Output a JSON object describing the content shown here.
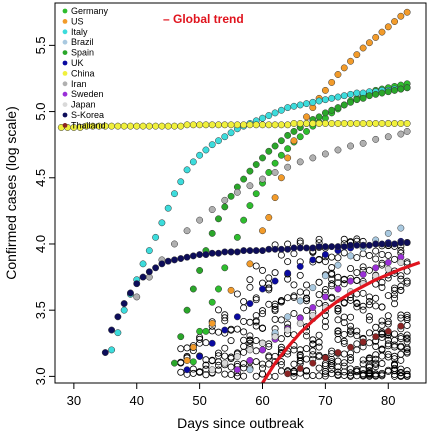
{
  "chart_data": {
    "type": "scatter",
    "title": "",
    "xlabel": "Days since outbreak",
    "ylabel": "Confirmed cases (log scale)",
    "xlim": [
      27,
      86
    ],
    "ylim": [
      2.95,
      5.82
    ],
    "x_ticks": [
      30,
      40,
      50,
      60,
      70,
      80
    ],
    "x_tick_labels": [
      "30",
      "40",
      "50",
      "60",
      "70",
      "80"
    ],
    "y_ticks": [
      3.0,
      3.5,
      4.0,
      4.5,
      5.0,
      5.5
    ],
    "y_tick_labels": [
      "3.0",
      "3.5",
      "4.0",
      "4.5",
      "5.0",
      "5.5"
    ],
    "grid": false,
    "legend_position": "top-left",
    "annotation": {
      "text": "Global trend",
      "color": "#e0141e"
    },
    "series": [
      {
        "name": "Germany",
        "color": "#2ebd2e",
        "x": [
          49,
          50,
          51,
          52,
          53,
          54,
          55,
          56,
          57,
          58,
          59,
          60,
          61,
          62,
          63,
          64,
          65,
          66,
          67,
          68,
          69,
          70,
          71,
          72,
          73,
          74,
          75,
          76,
          77,
          78,
          79,
          80,
          81,
          82,
          83
        ],
        "y": [
          3.11,
          3.34,
          3.34,
          3.56,
          3.66,
          3.82,
          3.94,
          4.05,
          4.18,
          4.29,
          4.38,
          4.46,
          4.54,
          4.61,
          4.67,
          4.72,
          4.77,
          4.81,
          4.85,
          4.89,
          4.92,
          4.95,
          4.99,
          5.02,
          5.05,
          5.08,
          5.1,
          5.12,
          5.14,
          5.16,
          5.17,
          5.18,
          5.19,
          5.2,
          5.21
        ]
      },
      {
        "name": "US",
        "color": "#f29b2a",
        "x": [
          48,
          49,
          52,
          55,
          58,
          60,
          61,
          62,
          63,
          64,
          65,
          66,
          67,
          68,
          69,
          70,
          71,
          72,
          73,
          74,
          75,
          76,
          77,
          78,
          79,
          80,
          81,
          82,
          83
        ],
        "y": [
          3.12,
          3.22,
          3.4,
          3.65,
          3.85,
          4.1,
          4.2,
          4.35,
          4.5,
          4.65,
          4.78,
          4.88,
          4.96,
          5.03,
          5.1,
          5.16,
          5.22,
          5.28,
          5.33,
          5.38,
          5.43,
          5.48,
          5.52,
          5.56,
          5.6,
          5.64,
          5.68,
          5.72,
          5.75
        ]
      },
      {
        "name": "Italy",
        "color": "#3cdcdc",
        "x": [
          36,
          37,
          38,
          39,
          40,
          41,
          42,
          43,
          44,
          45,
          46,
          47,
          48,
          49,
          50,
          51,
          52,
          53,
          54,
          55,
          56,
          57,
          58,
          59,
          60,
          61,
          62,
          63,
          64,
          65,
          66,
          67,
          68,
          69,
          70,
          71,
          72,
          73,
          74,
          75,
          76,
          77,
          78,
          79,
          80,
          81,
          82,
          83
        ],
        "y": [
          3.2,
          3.33,
          3.5,
          3.62,
          3.73,
          3.85,
          3.95,
          4.05,
          4.16,
          4.27,
          4.38,
          4.47,
          4.56,
          4.62,
          4.67,
          4.71,
          4.75,
          4.78,
          4.81,
          4.84,
          4.87,
          4.89,
          4.91,
          4.93,
          4.95,
          4.97,
          4.99,
          5.01,
          5.03,
          5.04,
          5.05,
          5.06,
          5.07,
          5.08,
          5.09,
          5.1,
          5.11,
          5.12,
          5.13,
          5.14,
          5.14,
          5.15,
          5.15,
          5.16,
          5.16,
          5.17,
          5.17,
          5.18
        ]
      },
      {
        "name": "Brazil",
        "color": "#a9c9e0",
        "x": [
          58,
          60,
          62,
          64,
          66,
          68,
          70,
          72,
          74,
          76,
          78,
          80,
          82
        ],
        "y": [
          3.05,
          3.2,
          3.33,
          3.45,
          3.57,
          3.67,
          3.76,
          3.84,
          3.91,
          3.97,
          4.03,
          4.08,
          4.12
        ]
      },
      {
        "name": "Spain",
        "color": "#2aa62a",
        "x": [
          46,
          47,
          48,
          49,
          50,
          51,
          52,
          53,
          54,
          55,
          56,
          57,
          58,
          59,
          60,
          61,
          62,
          63,
          64,
          65,
          66,
          67,
          68,
          69,
          70,
          71,
          72,
          73,
          74,
          75,
          76,
          77,
          78,
          79,
          80,
          81,
          82,
          83
        ],
        "y": [
          3.1,
          3.3,
          3.5,
          3.66,
          3.8,
          3.95,
          4.08,
          4.19,
          4.28,
          4.36,
          4.43,
          4.49,
          4.55,
          4.6,
          4.65,
          4.7,
          4.74,
          4.78,
          4.82,
          4.85,
          4.88,
          4.91,
          4.94,
          4.96,
          4.99,
          5.01,
          5.03,
          5.05,
          5.07,
          5.09,
          5.1,
          5.12,
          5.13,
          5.14,
          5.15,
          5.16,
          5.17,
          5.18
        ]
      },
      {
        "name": "UK",
        "color": "#0a0aa0",
        "x": [
          48,
          50,
          52,
          54,
          56,
          58,
          60,
          62,
          64,
          66,
          68,
          70,
          72,
          74,
          76,
          78,
          80,
          82
        ],
        "y": [
          3.05,
          3.15,
          3.25,
          3.35,
          3.45,
          3.55,
          3.66,
          3.72,
          3.78,
          3.83,
          3.88,
          3.92,
          3.95,
          3.97,
          3.99,
          4.0,
          4.01,
          4.02
        ]
      },
      {
        "name": "China",
        "color": "#f0f03c",
        "x": [
          28,
          29,
          30,
          31,
          32,
          33,
          34,
          35,
          36,
          37,
          38,
          39,
          40,
          41,
          42,
          43,
          44,
          45,
          46,
          47,
          48,
          49,
          50,
          51,
          52,
          53,
          54,
          55,
          56,
          57,
          58,
          59,
          60,
          61,
          62,
          63,
          64,
          65,
          66,
          67,
          68,
          69,
          70,
          71,
          72,
          73,
          74,
          75,
          76,
          77,
          78,
          79,
          80,
          81,
          82,
          83
        ],
        "y": [
          4.88,
          4.88,
          4.88,
          4.88,
          4.89,
          4.89,
          4.89,
          4.89,
          4.89,
          4.89,
          4.89,
          4.89,
          4.89,
          4.89,
          4.89,
          4.89,
          4.89,
          4.89,
          4.89,
          4.89,
          4.9,
          4.9,
          4.9,
          4.9,
          4.9,
          4.9,
          4.9,
          4.9,
          4.9,
          4.9,
          4.9,
          4.9,
          4.9,
          4.9,
          4.9,
          4.9,
          4.9,
          4.91,
          4.91,
          4.91,
          4.91,
          4.91,
          4.91,
          4.91,
          4.91,
          4.91,
          4.91,
          4.91,
          4.91,
          4.91,
          4.91,
          4.91,
          4.91,
          4.91,
          4.91,
          4.91
        ]
      },
      {
        "name": "Iran",
        "color": "#b0b0b0",
        "x": [
          40,
          42,
          44,
          46,
          48,
          50,
          52,
          54,
          56,
          58,
          60,
          62,
          64,
          66,
          68,
          70,
          72,
          74,
          76,
          78,
          80,
          82,
          83
        ],
        "y": [
          3.6,
          3.75,
          3.88,
          4.0,
          4.1,
          4.18,
          4.26,
          4.33,
          4.39,
          4.44,
          4.49,
          4.54,
          4.58,
          4.62,
          4.65,
          4.68,
          4.71,
          4.74,
          4.76,
          4.79,
          4.81,
          4.83,
          4.85
        ]
      },
      {
        "name": "Sweden",
        "color": "#9a2fd8",
        "x": [
          56,
          58,
          60,
          62,
          64,
          66,
          68,
          70,
          72,
          74,
          76,
          78,
          80,
          82
        ],
        "y": [
          3.05,
          3.12,
          3.2,
          3.28,
          3.36,
          3.44,
          3.52,
          3.6,
          3.66,
          3.72,
          3.77,
          3.82,
          3.86,
          3.9
        ]
      },
      {
        "name": "Japan",
        "color": "#d9d9d9",
        "x": [
          52,
          54,
          56,
          58,
          60,
          62,
          64,
          66,
          68,
          70,
          72,
          74,
          76,
          78,
          80,
          82
        ],
        "y": [
          3.05,
          3.1,
          3.15,
          3.2,
          3.25,
          3.3,
          3.35,
          3.4,
          3.46,
          3.52,
          3.58,
          3.64,
          3.7,
          3.76,
          3.81,
          3.86
        ]
      },
      {
        "name": "S-Korea",
        "color": "#0d0d5a",
        "x": [
          35,
          36,
          37,
          38,
          39,
          40,
          41,
          42,
          43,
          44,
          45,
          46,
          47,
          48,
          49,
          50,
          51,
          52,
          53,
          54,
          55,
          56,
          57,
          58,
          59,
          60,
          61,
          62,
          63,
          64,
          65,
          66,
          67,
          68,
          69,
          70,
          71,
          72,
          73,
          74,
          75,
          76,
          77,
          78,
          79,
          80,
          81,
          82,
          83
        ],
        "y": [
          3.18,
          3.35,
          3.45,
          3.55,
          3.63,
          3.7,
          3.75,
          3.79,
          3.82,
          3.85,
          3.87,
          3.88,
          3.89,
          3.9,
          3.91,
          3.92,
          3.92,
          3.93,
          3.93,
          3.94,
          3.94,
          3.94,
          3.95,
          3.95,
          3.95,
          3.95,
          3.96,
          3.96,
          3.96,
          3.96,
          3.97,
          3.97,
          3.97,
          3.97,
          3.98,
          3.98,
          3.98,
          3.98,
          3.98,
          3.99,
          3.99,
          3.99,
          3.99,
          4.0,
          4.0,
          4.0,
          4.0,
          4.01,
          4.01
        ]
      },
      {
        "name": "Thailand",
        "color": "#8b2323",
        "x": [
          64,
          66,
          68,
          70,
          72,
          74,
          76,
          78,
          80,
          82
        ],
        "y": [
          3.02,
          3.06,
          3.1,
          3.14,
          3.18,
          3.22,
          3.26,
          3.3,
          3.34,
          3.38
        ]
      }
    ],
    "other_countries": {
      "marker": "open-circle",
      "color": "#000000",
      "x_range": [
        47,
        83
      ],
      "y_range": [
        3.0,
        4.05
      ]
    },
    "trend": {
      "color": "#e0141e",
      "x": [
        60,
        62,
        64,
        66,
        68,
        70,
        72,
        74,
        76,
        78,
        80,
        82,
        85
      ],
      "y": [
        2.95,
        3.1,
        3.22,
        3.33,
        3.42,
        3.5,
        3.57,
        3.63,
        3.68,
        3.73,
        3.77,
        3.81,
        3.86
      ]
    }
  }
}
